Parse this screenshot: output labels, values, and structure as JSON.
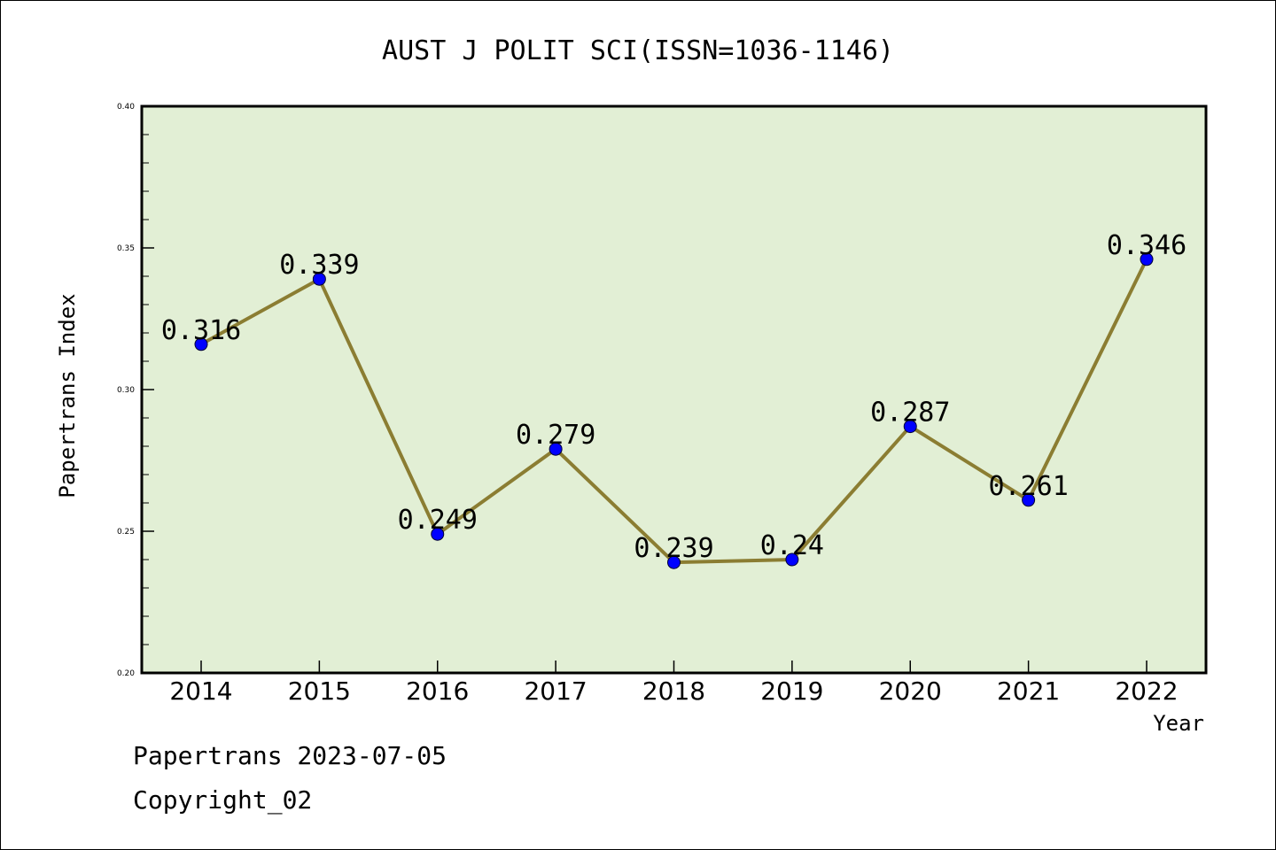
{
  "chart_data": {
    "type": "line",
    "title": "AUST J POLIT SCI(ISSN=1036-1146)",
    "xlabel": "Year",
    "ylabel": "Papertrans Index",
    "x": [
      "2014",
      "2015",
      "2016",
      "2017",
      "2018",
      "2019",
      "2020",
      "2021",
      "2022"
    ],
    "series": [
      {
        "values": [
          0.316,
          0.339,
          0.249,
          0.279,
          0.239,
          0.24,
          0.287,
          0.261,
          0.346
        ],
        "data_labels": [
          "0.316",
          "0.339",
          "0.249",
          "0.279",
          "0.239",
          "0.24",
          "0.287",
          "0.261",
          "0.346"
        ],
        "line_color": "#8b7d32",
        "marker_color": "#0000ff"
      }
    ],
    "ylim": [
      0.2,
      0.4
    ],
    "yticks": [
      "0.20",
      "0.25",
      "0.30",
      "0.35",
      "0.40"
    ],
    "plot_background": "#e2efd5",
    "grid": false,
    "legend": "none"
  },
  "footer": {
    "line1": "Papertrans 2023-07-05",
    "line2": "Copyright_02"
  }
}
